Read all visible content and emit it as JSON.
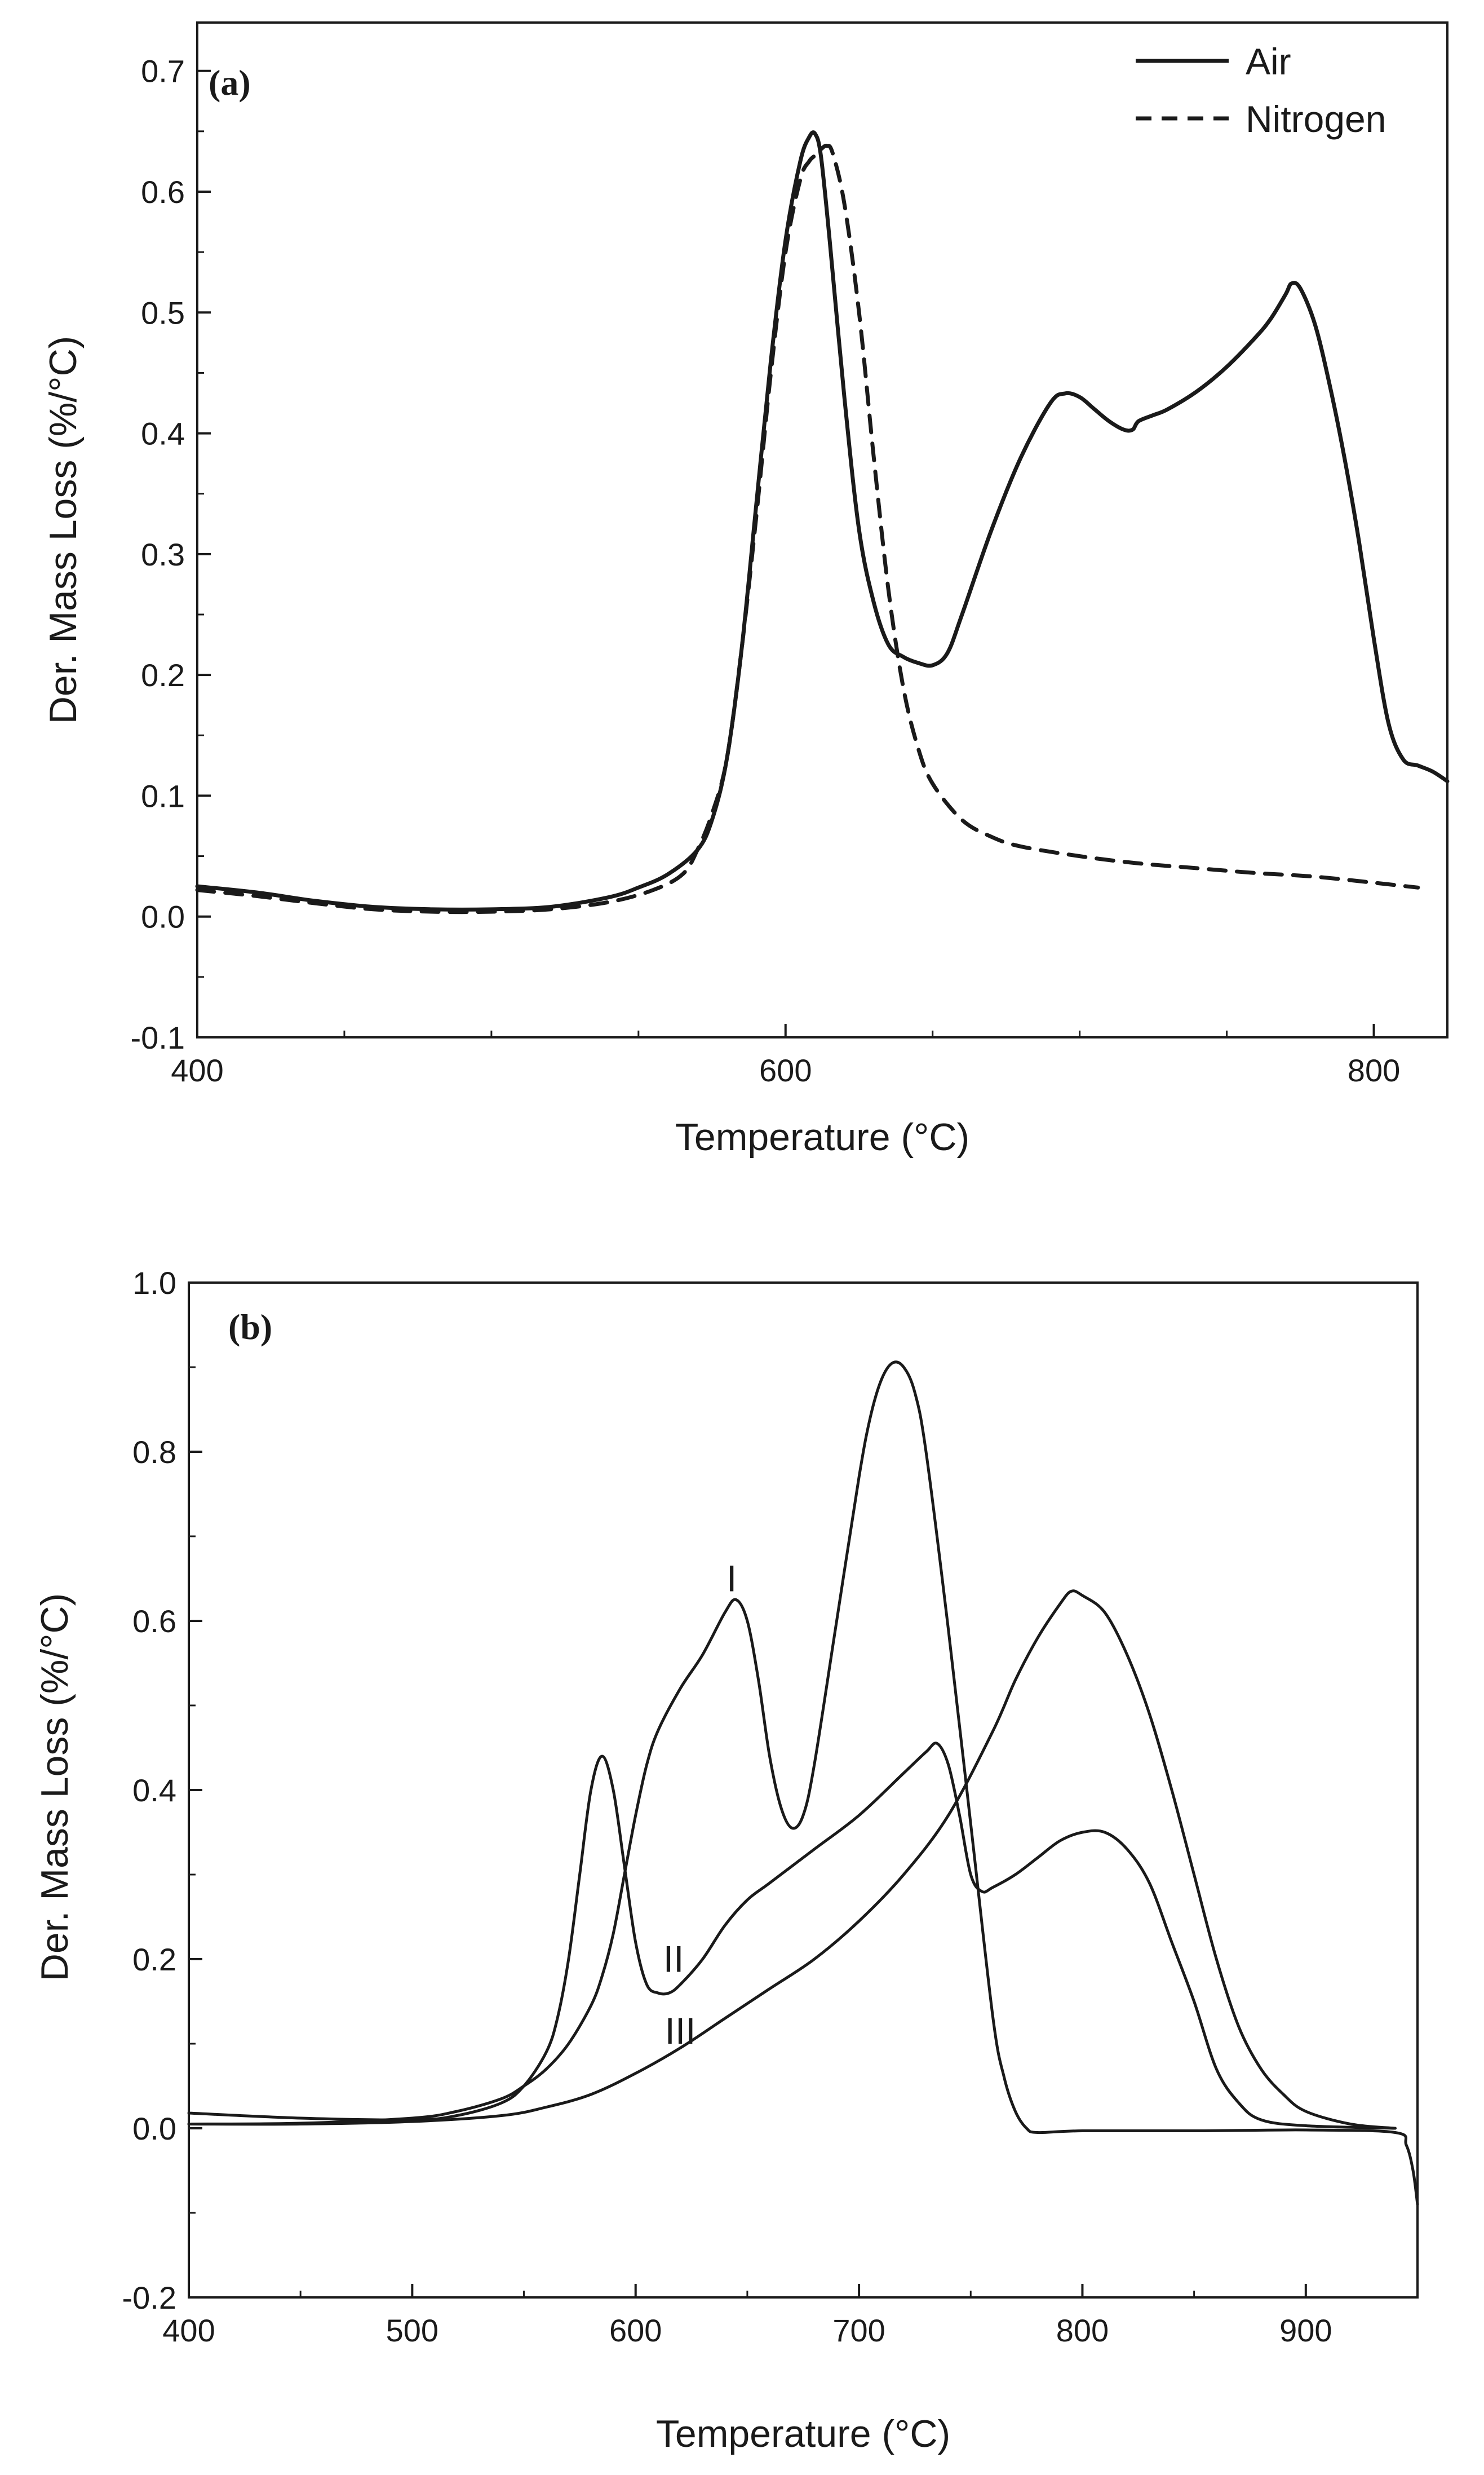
{
  "chart_data": [
    {
      "type": "line",
      "panel_label": "(a)",
      "xlabel": "Temperature (°C)",
      "ylabel": "Der. Mass Loss (%/°C)",
      "xlim": [
        400,
        825
      ],
      "ylim": [
        -0.1,
        0.74
      ],
      "x_ticks": [
        400,
        600,
        800
      ],
      "x_tick_labels": [
        "400",
        "600",
        "800"
      ],
      "y_ticks": [
        -0.1,
        0.0,
        0.1,
        0.2,
        0.3,
        0.4,
        0.5,
        0.6,
        0.7
      ],
      "y_tick_labels": [
        "-0.1",
        "0.0",
        "0.1",
        "0.2",
        "0.3",
        "0.4",
        "0.5",
        "0.6",
        "0.7"
      ],
      "legend_position": "top-right",
      "legend": [
        "Air",
        "Nitrogen"
      ],
      "series": [
        {
          "name": "Air",
          "style": "solid",
          "x": [
            400,
            420,
            440,
            460,
            480,
            500,
            520,
            540,
            550,
            560,
            570,
            575,
            580,
            585,
            590,
            595,
            600,
            605,
            608,
            610,
            612,
            615,
            620,
            625,
            630,
            635,
            640,
            645,
            650,
            655,
            660,
            670,
            680,
            690,
            695,
            700,
            705,
            710,
            715,
            718,
            720,
            725,
            730,
            740,
            750,
            760,
            765,
            770,
            772,
            775,
            780,
            785,
            790,
            795,
            800,
            805,
            810,
            815,
            820,
            825
          ],
          "values": [
            0.025,
            0.02,
            0.013,
            0.008,
            0.006,
            0.006,
            0.008,
            0.016,
            0.024,
            0.035,
            0.055,
            0.08,
            0.13,
            0.22,
            0.34,
            0.46,
            0.56,
            0.625,
            0.645,
            0.648,
            0.63,
            0.56,
            0.43,
            0.32,
            0.26,
            0.225,
            0.215,
            0.21,
            0.208,
            0.218,
            0.25,
            0.32,
            0.38,
            0.425,
            0.433,
            0.43,
            0.42,
            0.41,
            0.403,
            0.403,
            0.41,
            0.415,
            0.42,
            0.435,
            0.455,
            0.48,
            0.495,
            0.515,
            0.524,
            0.52,
            0.49,
            0.44,
            0.38,
            0.31,
            0.23,
            0.16,
            0.13,
            0.125,
            0.12,
            0.112
          ]
        },
        {
          "name": "Nitrogen",
          "style": "dashed",
          "x": [
            400,
            420,
            440,
            460,
            480,
            500,
            520,
            540,
            555,
            565,
            570,
            575,
            580,
            585,
            590,
            595,
            600,
            605,
            608,
            610,
            612,
            614,
            616,
            620,
            625,
            630,
            635,
            640,
            645,
            650,
            660,
            670,
            680,
            700,
            720,
            740,
            760,
            780,
            800,
            815
          ],
          "values": [
            0.022,
            0.017,
            0.011,
            0.006,
            0.004,
            0.004,
            0.006,
            0.012,
            0.022,
            0.035,
            0.055,
            0.085,
            0.13,
            0.22,
            0.33,
            0.45,
            0.55,
            0.61,
            0.625,
            0.63,
            0.635,
            0.638,
            0.632,
            0.59,
            0.5,
            0.38,
            0.27,
            0.19,
            0.14,
            0.11,
            0.08,
            0.066,
            0.058,
            0.05,
            0.044,
            0.04,
            0.036,
            0.033,
            0.028,
            0.024
          ]
        }
      ]
    },
    {
      "type": "line",
      "panel_label": "(b)",
      "xlabel": "Temperature (°C)",
      "ylabel": "Der. Mass Loss (%/°C)",
      "xlim": [
        400,
        950
      ],
      "ylim": [
        -0.2,
        1.0
      ],
      "x_ticks": [
        400,
        500,
        600,
        700,
        800,
        900
      ],
      "x_tick_labels": [
        "400",
        "500",
        "600",
        "700",
        "800",
        "900"
      ],
      "y_ticks": [
        -0.2,
        0.0,
        0.2,
        0.4,
        0.6,
        0.8,
        1.0
      ],
      "y_tick_labels": [
        "-0.2",
        "0.0",
        "0.2",
        "0.4",
        "0.6",
        "0.8",
        "1.0"
      ],
      "annotations": [
        {
          "text": "I",
          "x": 643,
          "y": 0.635
        },
        {
          "text": "II",
          "x": 617,
          "y": 0.185
        },
        {
          "text": "III",
          "x": 620,
          "y": 0.1
        }
      ],
      "series": [
        {
          "name": "I",
          "style": "solid",
          "x": [
            400,
            450,
            500,
            520,
            540,
            550,
            560,
            570,
            580,
            585,
            590,
            595,
            600,
            605,
            610,
            620,
            630,
            640,
            645,
            650,
            655,
            660,
            665,
            670,
            675,
            680,
            690,
            700,
            705,
            710,
            715,
            720,
            725,
            730,
            740,
            750,
            760,
            765,
            770,
            775,
            780,
            800,
            850,
            900,
            940,
            945,
            948,
            950
          ],
          "values": [
            0.005,
            0.006,
            0.012,
            0.02,
            0.035,
            0.05,
            0.07,
            0.1,
            0.145,
            0.18,
            0.23,
            0.3,
            0.37,
            0.43,
            0.47,
            0.52,
            0.56,
            0.61,
            0.625,
            0.6,
            0.53,
            0.44,
            0.38,
            0.355,
            0.37,
            0.43,
            0.6,
            0.77,
            0.84,
            0.885,
            0.905,
            0.9,
            0.87,
            0.8,
            0.59,
            0.36,
            0.13,
            0.06,
            0.02,
            0.0,
            -0.005,
            -0.003,
            -0.003,
            -0.002,
            -0.005,
            -0.02,
            -0.05,
            -0.09
          ]
        },
        {
          "name": "II",
          "style": "solid",
          "x": [
            400,
            450,
            500,
            520,
            540,
            550,
            560,
            565,
            570,
            575,
            580,
            585,
            590,
            595,
            600,
            605,
            610,
            615,
            620,
            630,
            640,
            650,
            660,
            680,
            700,
            720,
            730,
            735,
            740,
            745,
            750,
            755,
            760,
            770,
            780,
            790,
            800,
            810,
            820,
            830,
            840,
            850,
            860,
            870,
            880,
            900,
            940
          ],
          "values": [
            0.018,
            0.012,
            0.01,
            0.015,
            0.03,
            0.05,
            0.09,
            0.13,
            0.2,
            0.3,
            0.4,
            0.44,
            0.4,
            0.31,
            0.22,
            0.17,
            0.16,
            0.16,
            0.17,
            0.2,
            0.24,
            0.27,
            0.29,
            0.33,
            0.37,
            0.42,
            0.445,
            0.455,
            0.43,
            0.37,
            0.3,
            0.28,
            0.285,
            0.3,
            0.32,
            0.34,
            0.35,
            0.35,
            0.33,
            0.29,
            0.22,
            0.15,
            0.07,
            0.03,
            0.01,
            0.003,
            0.0
          ]
        },
        {
          "name": "III",
          "style": "solid",
          "x": [
            400,
            450,
            500,
            540,
            560,
            580,
            600,
            620,
            640,
            660,
            680,
            700,
            720,
            740,
            760,
            770,
            780,
            790,
            795,
            800,
            810,
            820,
            830,
            840,
            850,
            860,
            870,
            880,
            890,
            900,
            920,
            940
          ],
          "values": [
            0.005,
            0.005,
            0.008,
            0.015,
            0.025,
            0.04,
            0.065,
            0.095,
            0.13,
            0.165,
            0.2,
            0.245,
            0.3,
            0.37,
            0.47,
            0.53,
            0.58,
            0.62,
            0.635,
            0.63,
            0.61,
            0.56,
            0.49,
            0.4,
            0.3,
            0.2,
            0.12,
            0.07,
            0.04,
            0.02,
            0.005,
            0.0
          ]
        }
      ]
    }
  ]
}
